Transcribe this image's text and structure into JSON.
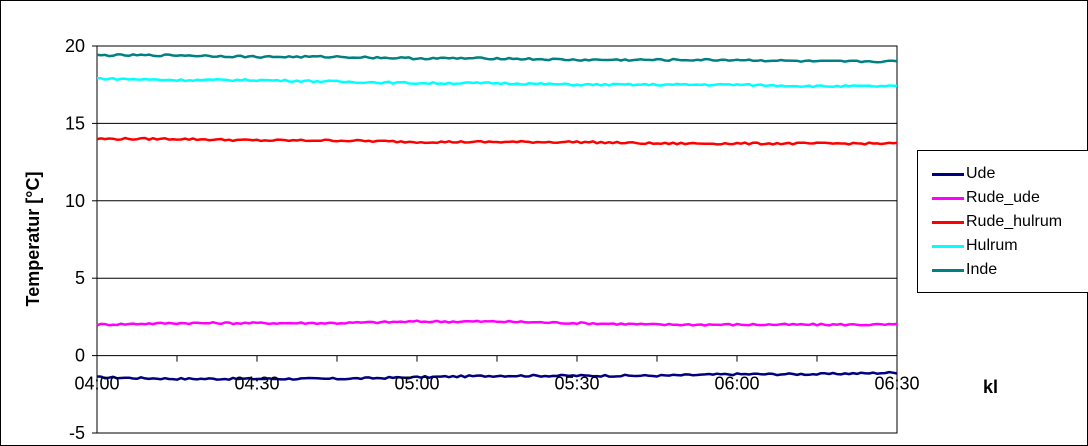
{
  "chart_data": {
    "type": "line",
    "xlabel": "kl",
    "ylabel": "Temperatur [°C]",
    "ylim": [
      -5,
      20
    ],
    "xlim": [
      "04:00",
      "06:30"
    ],
    "yticks": [
      -5,
      0,
      5,
      10,
      15,
      20
    ],
    "xticks": [
      "04:00",
      "04:30",
      "05:00",
      "05:30",
      "06:00",
      "06:30"
    ],
    "grid": "horizontal",
    "legend": "right",
    "x": [
      "04:00",
      "04:15",
      "04:30",
      "04:45",
      "05:00",
      "05:15",
      "05:30",
      "05:45",
      "06:00",
      "06:15",
      "06:30"
    ],
    "series": [
      {
        "name": "Ude",
        "color": "#000080",
        "values": [
          -1.4,
          -1.5,
          -1.5,
          -1.5,
          -1.4,
          -1.3,
          -1.3,
          -1.3,
          -1.2,
          -1.2,
          -1.1
        ]
      },
      {
        "name": "Rude_ude",
        "color": "#FF00FF",
        "values": [
          2.0,
          2.1,
          2.1,
          2.1,
          2.2,
          2.2,
          2.1,
          2.0,
          2.0,
          2.0,
          2.0
        ]
      },
      {
        "name": "Rude_hulrum",
        "color": "#FF0000",
        "values": [
          14.0,
          14.0,
          13.9,
          13.9,
          13.8,
          13.8,
          13.8,
          13.7,
          13.7,
          13.7,
          13.7
        ]
      },
      {
        "name": "Hulrum",
        "color": "#00FFFF",
        "values": [
          17.9,
          17.8,
          17.8,
          17.7,
          17.6,
          17.6,
          17.5,
          17.5,
          17.5,
          17.4,
          17.4
        ]
      },
      {
        "name": "Inde",
        "color": "#008080",
        "values": [
          19.4,
          19.4,
          19.3,
          19.3,
          19.2,
          19.2,
          19.1,
          19.1,
          19.1,
          19.0,
          19.0
        ]
      }
    ]
  }
}
